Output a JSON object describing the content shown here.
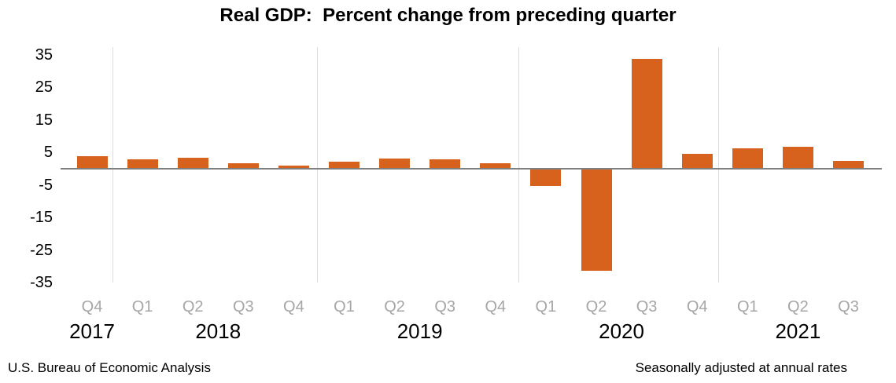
{
  "title": "Real GDP:  Percent change from preceding quarter",
  "footer": {
    "source_note": "U.S. Bureau of Economic Analysis",
    "adjustment_note": "Seasonally adjusted at annual rates"
  },
  "chart_data": {
    "type": "bar",
    "title": "Real GDP:  Percent change from preceding quarter",
    "xlabel": "",
    "ylabel": "",
    "ylim": [
      -35,
      35
    ],
    "y_ticks": [
      35,
      25,
      15,
      5,
      -5,
      -15,
      -25,
      -35
    ],
    "grid": "vertical-year-separators-only",
    "legend": "none",
    "bar_color": "#d6621e",
    "axis_line_color": "#808080",
    "gridline_color": "#dcdcdc",
    "quarter_label_color": "#a6a6a6",
    "groups": [
      {
        "year": "2017",
        "quarters": [
          "Q4"
        ],
        "values": [
          3.8
        ]
      },
      {
        "year": "2018",
        "quarters": [
          "Q1",
          "Q2",
          "Q3",
          "Q4"
        ],
        "values": [
          3.0,
          3.4,
          1.8,
          0.9
        ]
      },
      {
        "year": "2019",
        "quarters": [
          "Q1",
          "Q2",
          "Q3",
          "Q4"
        ],
        "values": [
          2.2,
          3.1,
          2.8,
          1.8
        ]
      },
      {
        "year": "2020",
        "quarters": [
          "Q1",
          "Q2",
          "Q3",
          "Q4"
        ],
        "values": [
          -5.1,
          -31.2,
          33.8,
          4.5
        ]
      },
      {
        "year": "2021",
        "quarters": [
          "Q1",
          "Q2",
          "Q3"
        ],
        "values": [
          6.3,
          6.7,
          2.3
        ]
      }
    ]
  }
}
